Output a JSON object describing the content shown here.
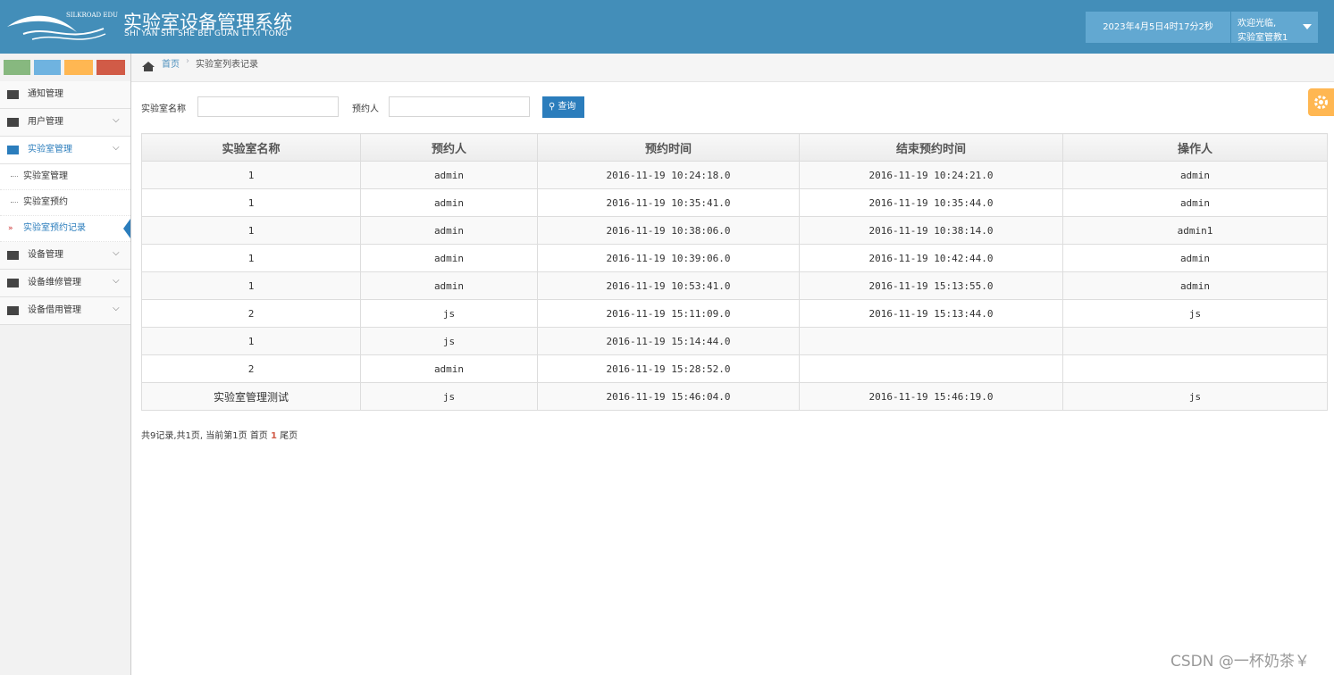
{
  "header": {
    "logo_text": "SILKROAD EDU",
    "title": "实验室设备管理系统",
    "subtitle": "SHI YAN SHI SHE BEI GUAN LI XI TONG",
    "datetime": "2023年4月5日4时17分2秒",
    "welcome": "欢迎光临,",
    "user": "实验室管教1"
  },
  "sidebar": {
    "menu": [
      {
        "label": "通知管理"
      },
      {
        "label": "用户管理"
      },
      {
        "label": "实验室管理",
        "children": [
          "实验室管理",
          "实验室预约",
          "实验室预约记录"
        ]
      },
      {
        "label": "设备管理"
      },
      {
        "label": "设备维修管理"
      },
      {
        "label": "设备借用管理"
      }
    ]
  },
  "breadcrumb": [
    "首页",
    "实验室列表记录"
  ],
  "search": {
    "fields": [
      "实验室名称",
      "预约人"
    ],
    "button": "查询"
  },
  "table": {
    "columns": [
      "实验室名称",
      "预约人",
      "预约时间",
      "结束预约时间",
      "操作人"
    ],
    "rows": [
      [
        "1",
        "admin",
        "2016-11-19 10:24:18.0",
        "2016-11-19 10:24:21.0",
        "admin"
      ],
      [
        "1",
        "admin",
        "2016-11-19 10:35:41.0",
        "2016-11-19 10:35:44.0",
        "admin"
      ],
      [
        "1",
        "admin",
        "2016-11-19 10:38:06.0",
        "2016-11-19 10:38:14.0",
        "admin1"
      ],
      [
        "1",
        "admin",
        "2016-11-19 10:39:06.0",
        "2016-11-19 10:42:44.0",
        "admin"
      ],
      [
        "1",
        "admin",
        "2016-11-19 10:53:41.0",
        "2016-11-19 15:13:55.0",
        "admin"
      ],
      [
        "2",
        "js",
        "2016-11-19 15:11:09.0",
        "2016-11-19 15:13:44.0",
        "js"
      ],
      [
        "1",
        "js",
        "2016-11-19 15:14:44.0",
        null,
        null
      ],
      [
        "2",
        "admin",
        "2016-11-19 15:28:52.0",
        null,
        null
      ],
      [
        "实验室管理测试",
        "js",
        "2016-11-19 15:46:04.0",
        "2016-11-19 15:46:19.0",
        "js"
      ]
    ]
  },
  "pagination": {
    "summary": "共9记录,共1页, 当前第1页",
    "first": "首页",
    "current": "1",
    "last": "尾页"
  },
  "watermark": "CSDN @一杯奶茶￥"
}
